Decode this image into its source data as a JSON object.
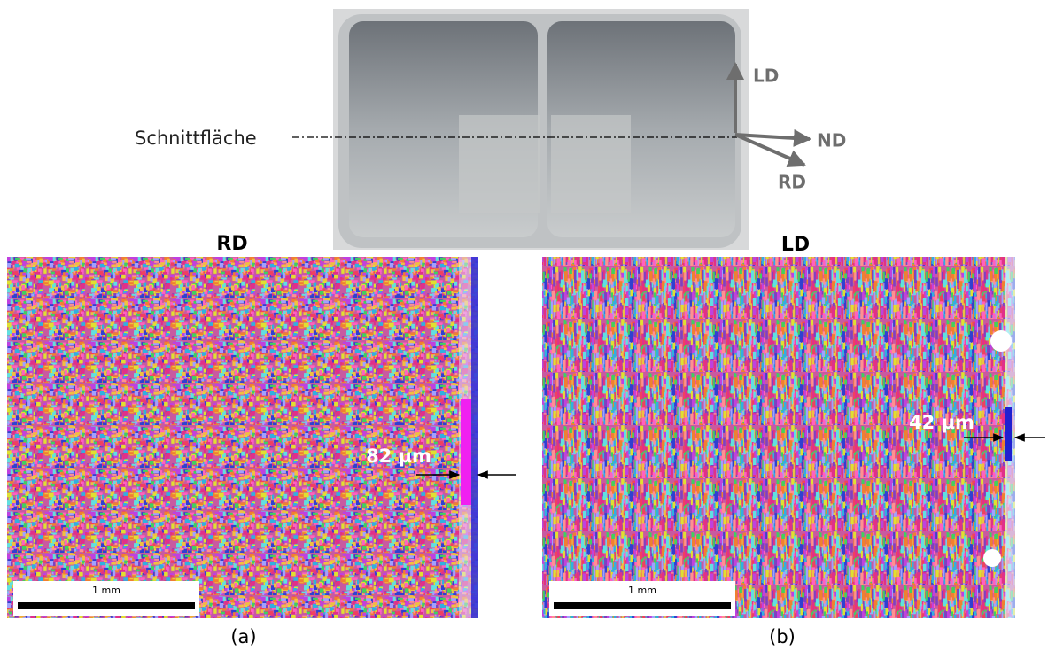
{
  "photo": {
    "section_label": "Schnittfläche",
    "axes": {
      "ld": "LD",
      "nd": "ND",
      "rd": "RD"
    }
  },
  "panels": [
    {
      "heading": "RD",
      "thickness": "82 µm",
      "scale_bar": "1 mm",
      "caption": "(a)"
    },
    {
      "heading": "LD",
      "thickness": "42 µm",
      "scale_bar": "1 mm",
      "caption": "(b)"
    }
  ]
}
